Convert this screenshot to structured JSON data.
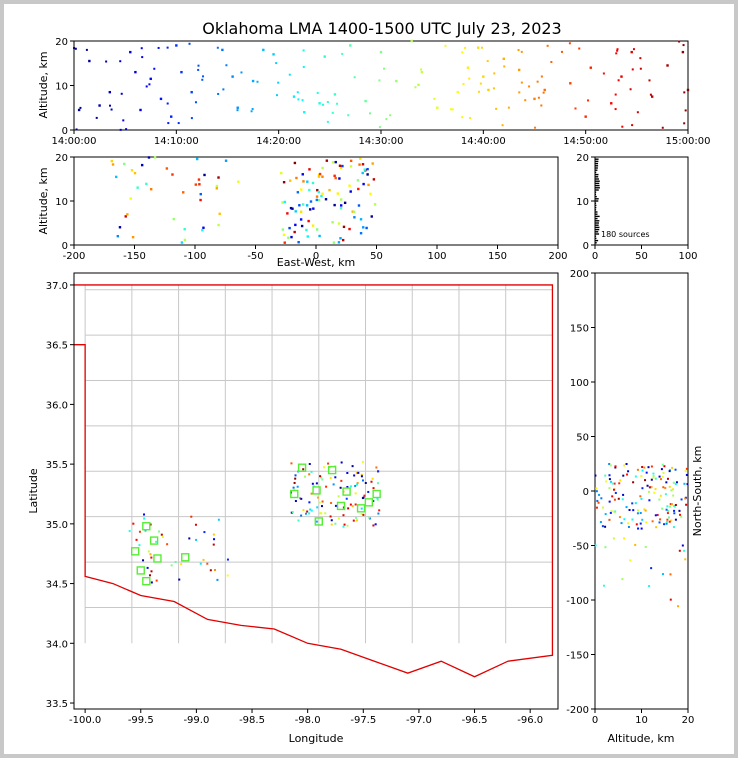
{
  "title": "Oklahoma LMA 1400-1500 UTC July 23, 2023",
  "source_count_label": "180 sources",
  "chart_data": [
    {
      "panel": "altitude-vs-time",
      "type": "scatter",
      "ylabel": "Altitude, km",
      "xlabel": "",
      "x_ticks": [
        "14:00:00",
        "14:10:00",
        "14:20:00",
        "14:30:00",
        "14:40:00",
        "14:50:00",
        "15:00:00"
      ],
      "xlim_minutes": [
        0,
        60
      ],
      "ylim": [
        0,
        20
      ],
      "y_ticks": [
        0,
        10,
        20
      ],
      "color_scale": "time (blue to red)",
      "points_sample": [
        {
          "t": 0.5,
          "alt": 4.5
        },
        {
          "t": 1.5,
          "alt": 15.5
        },
        {
          "t": 2.5,
          "alt": 5.5
        },
        {
          "t": 3.5,
          "alt": 8.5
        },
        {
          "t": 5.5,
          "alt": 17.5
        },
        {
          "t": 6.0,
          "alt": 13.0
        },
        {
          "t": 6.5,
          "alt": 4.5
        },
        {
          "t": 7.5,
          "alt": 11.5
        },
        {
          "t": 8.5,
          "alt": 7.0
        },
        {
          "t": 9.5,
          "alt": 3.0
        },
        {
          "t": 10.0,
          "alt": 19.0
        },
        {
          "t": 10.5,
          "alt": 13.0
        },
        {
          "t": 11.5,
          "alt": 8.5
        },
        {
          "t": 14.5,
          "alt": 18.0
        },
        {
          "t": 15.5,
          "alt": 12.0
        },
        {
          "t": 16.0,
          "alt": 5.0
        },
        {
          "t": 17.5,
          "alt": 11.0
        },
        {
          "t": 18.5,
          "alt": 18.0
        },
        {
          "t": 19.5,
          "alt": 17.0
        },
        {
          "t": 21.5,
          "alt": 7.5
        },
        {
          "t": 22.5,
          "alt": 4.0
        },
        {
          "t": 24.0,
          "alt": 6.0
        },
        {
          "t": 24.5,
          "alt": 16.5
        },
        {
          "t": 25.5,
          "alt": 8.0
        },
        {
          "t": 27.0,
          "alt": 19.0
        },
        {
          "t": 28.5,
          "alt": 6.5
        },
        {
          "t": 30.0,
          "alt": 17.5
        },
        {
          "t": 31.5,
          "alt": 11.0
        },
        {
          "t": 33.0,
          "alt": 20.0
        },
        {
          "t": 34.0,
          "alt": 13.0
        },
        {
          "t": 35.5,
          "alt": 5.0
        },
        {
          "t": 37.5,
          "alt": 8.5
        },
        {
          "t": 38.5,
          "alt": 14.0
        },
        {
          "t": 39.5,
          "alt": 18.5
        },
        {
          "t": 40.0,
          "alt": 12.0
        },
        {
          "t": 40.5,
          "alt": 9.0
        },
        {
          "t": 42.0,
          "alt": 16.0
        },
        {
          "t": 43.5,
          "alt": 13.5
        },
        {
          "t": 45.0,
          "alt": 7.0
        },
        {
          "t": 46.0,
          "alt": 9.0
        },
        {
          "t": 48.5,
          "alt": 10.5
        },
        {
          "t": 50.0,
          "alt": 3.0
        },
        {
          "t": 50.5,
          "alt": 14.0
        },
        {
          "t": 52.5,
          "alt": 6.0
        },
        {
          "t": 53.5,
          "alt": 12.0
        },
        {
          "t": 54.5,
          "alt": 17.5
        },
        {
          "t": 56.5,
          "alt": 7.5
        },
        {
          "t": 58.0,
          "alt": 14.5
        },
        {
          "t": 59.5,
          "alt": 17.5
        },
        {
          "t": 60.0,
          "alt": 9.0
        }
      ]
    },
    {
      "panel": "altitude-vs-east-west",
      "type": "scatter",
      "xlabel": "East-West, km",
      "ylabel": "Altitude, km",
      "xlim": [
        -200,
        200
      ],
      "x_ticks": [
        -200,
        -150,
        -100,
        -50,
        0,
        50,
        100,
        150,
        200
      ],
      "ylim": [
        0,
        20
      ],
      "y_ticks": [
        0,
        10,
        20
      ]
    },
    {
      "panel": "altitude-histogram",
      "type": "bar",
      "xlim": [
        0,
        100
      ],
      "x_ticks": [
        0,
        50,
        100
      ],
      "ylim": [
        0,
        20
      ],
      "y_ticks": [
        0,
        10,
        20
      ],
      "annotation": "180 sources"
    },
    {
      "panel": "plan-view",
      "type": "scatter",
      "xlabel": "Longitude",
      "ylabel": "Latitude",
      "xlim": [
        -100.1,
        -95.75
      ],
      "x_ticks": [
        -100.0,
        -99.5,
        -99.0,
        -98.5,
        -98.0,
        -97.5,
        -97.0,
        -96.5,
        -96.0
      ],
      "ylim": [
        33.45,
        37.1
      ],
      "y_ticks": [
        33.5,
        34.0,
        34.5,
        35.0,
        35.5,
        36.0,
        36.5,
        37.0
      ],
      "stations": [
        {
          "lon": -98.05,
          "lat": 35.47
        },
        {
          "lon": -97.78,
          "lat": 35.45
        },
        {
          "lon": -98.12,
          "lat": 35.25
        },
        {
          "lon": -97.92,
          "lat": 35.28
        },
        {
          "lon": -97.65,
          "lat": 35.27
        },
        {
          "lon": -97.38,
          "lat": 35.25
        },
        {
          "lon": -97.7,
          "lat": 35.15
        },
        {
          "lon": -97.52,
          "lat": 35.13
        },
        {
          "lon": -97.45,
          "lat": 35.18
        },
        {
          "lon": -97.9,
          "lat": 35.02
        },
        {
          "lon": -99.45,
          "lat": 34.98
        },
        {
          "lon": -99.38,
          "lat": 34.86
        },
        {
          "lon": -99.55,
          "lat": 34.77
        },
        {
          "lon": -99.35,
          "lat": 34.71
        },
        {
          "lon": -99.5,
          "lat": 34.61
        },
        {
          "lon": -99.45,
          "lat": 34.52
        },
        {
          "lon": -99.1,
          "lat": 34.72
        }
      ]
    },
    {
      "panel": "north-south-vs-altitude",
      "type": "scatter",
      "xlabel": "Altitude, km",
      "ylabel": "North-South, km",
      "xlim": [
        0,
        20
      ],
      "x_ticks": [
        0,
        10,
        20
      ],
      "ylim": [
        -200,
        200
      ],
      "y_ticks": [
        -200,
        -150,
        -100,
        -50,
        0,
        50,
        100,
        150,
        200
      ]
    }
  ]
}
